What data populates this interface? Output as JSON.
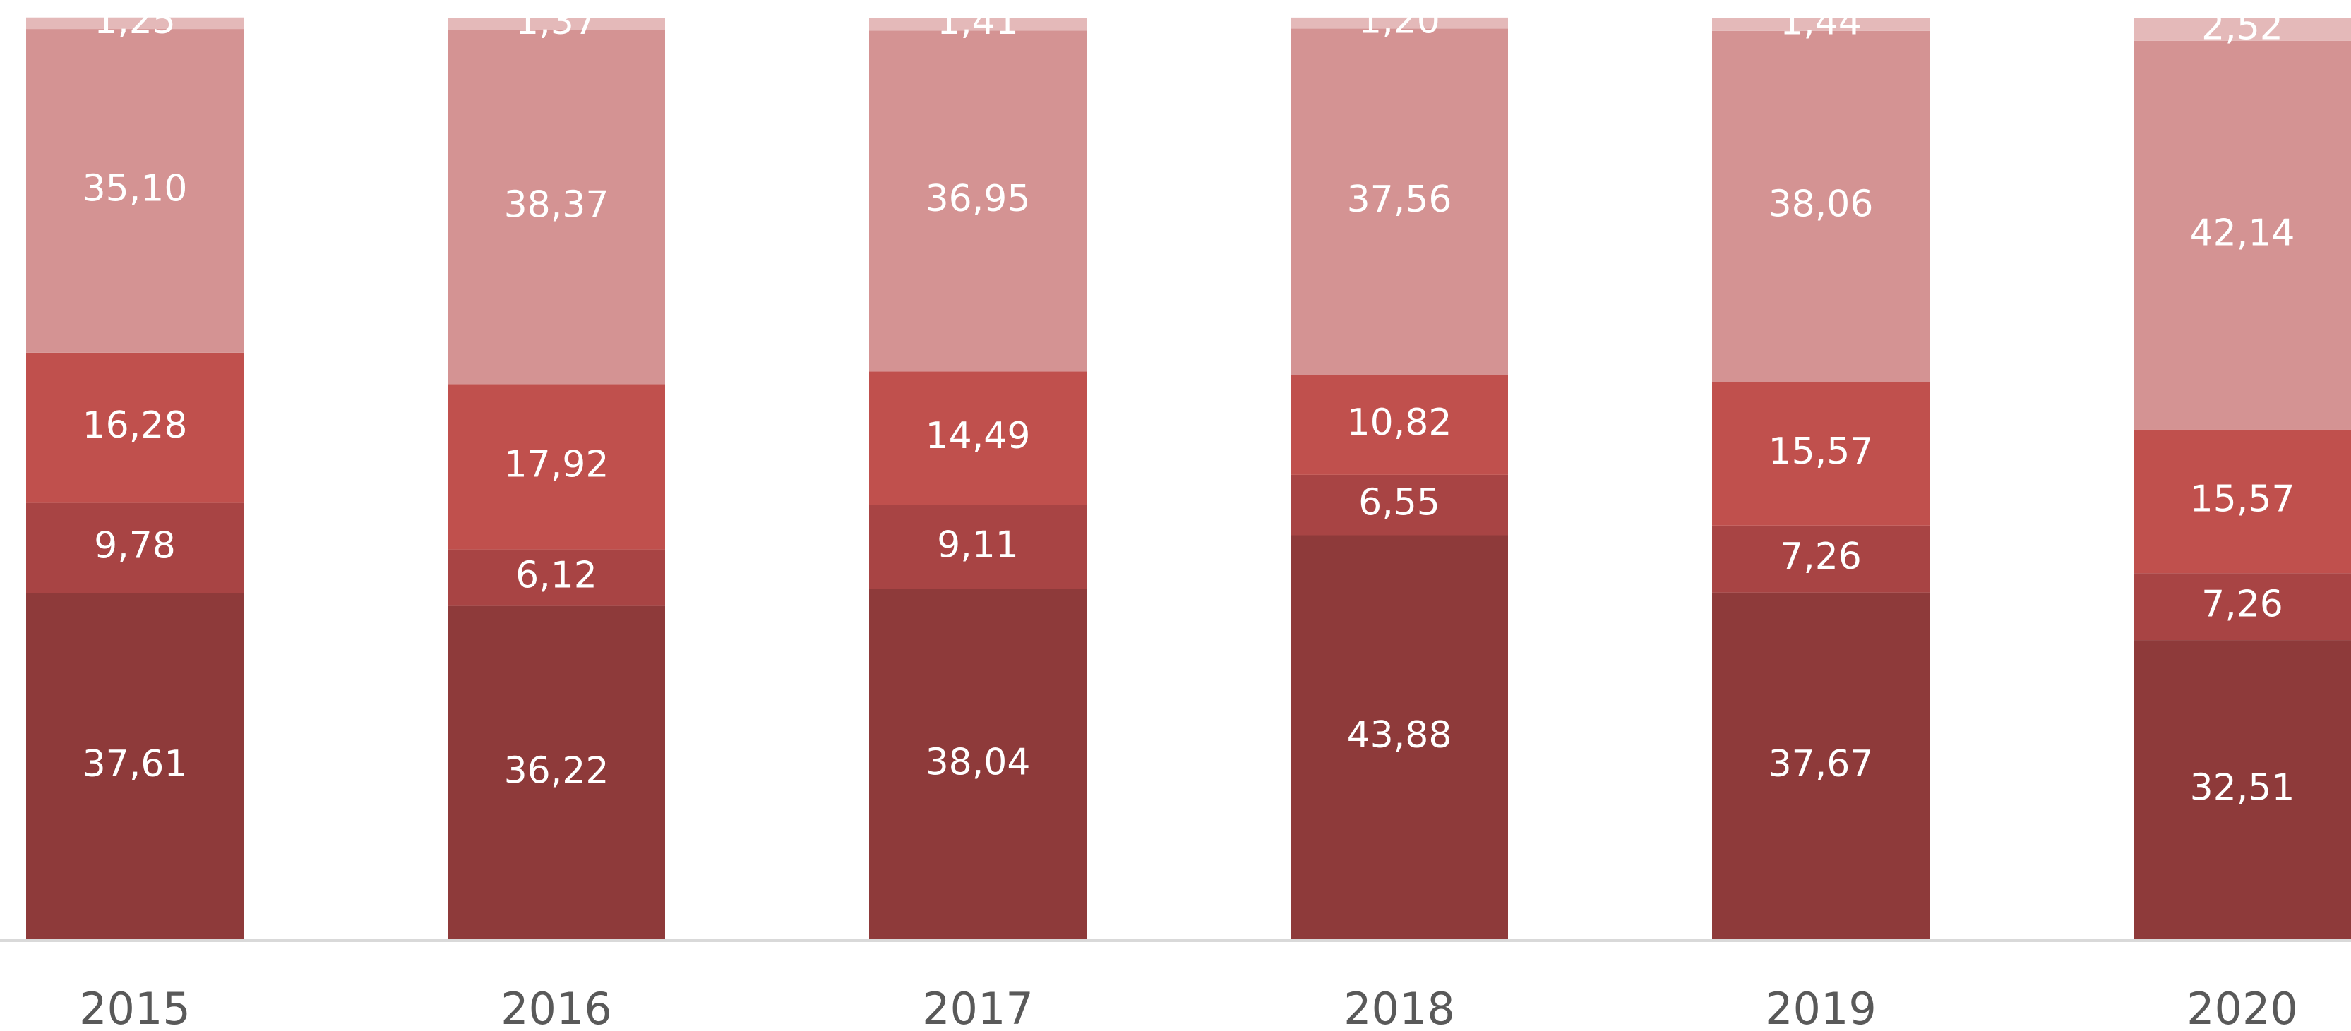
{
  "chart_data": {
    "type": "stacked-bar",
    "categories": [
      "2015",
      "2016",
      "2017",
      "2018",
      "2019",
      "2020"
    ],
    "ylim": [
      0,
      100
    ],
    "series": [
      {
        "color": "#8e3a3a",
        "values": [
          37.61,
          36.22,
          38.04,
          43.88,
          37.67,
          32.51
        ],
        "value_labels": [
          "37,61",
          "36,22",
          "38,04",
          "43,88",
          "37,67",
          "32,51"
        ]
      },
      {
        "color": "#a84444",
        "values": [
          9.78,
          6.12,
          9.11,
          6.55,
          7.26,
          7.26
        ],
        "value_labels": [
          "9,78",
          "6,12",
          "9,11",
          "6,55",
          "7,26",
          "7,26"
        ]
      },
      {
        "color": "#c0504d",
        "values": [
          16.28,
          17.92,
          14.49,
          10.82,
          15.57,
          15.57
        ],
        "value_labels": [
          "16,28",
          "17,92",
          "14,49",
          "10,82",
          "15,57",
          "15,57"
        ]
      },
      {
        "color": "#d49393",
        "values": [
          35.1,
          38.37,
          36.95,
          37.56,
          38.06,
          42.14
        ],
        "value_labels": [
          "35,10",
          "38,37",
          "36,95",
          "37,56",
          "38,06",
          "42,14"
        ]
      },
      {
        "color": "#e4b9b9",
        "values": [
          1.25,
          1.37,
          1.41,
          1.2,
          1.44,
          2.52
        ],
        "value_labels": [
          "1,25",
          "1,37",
          "1,41",
          "1,20",
          "1,44",
          "2,52"
        ]
      }
    ]
  }
}
